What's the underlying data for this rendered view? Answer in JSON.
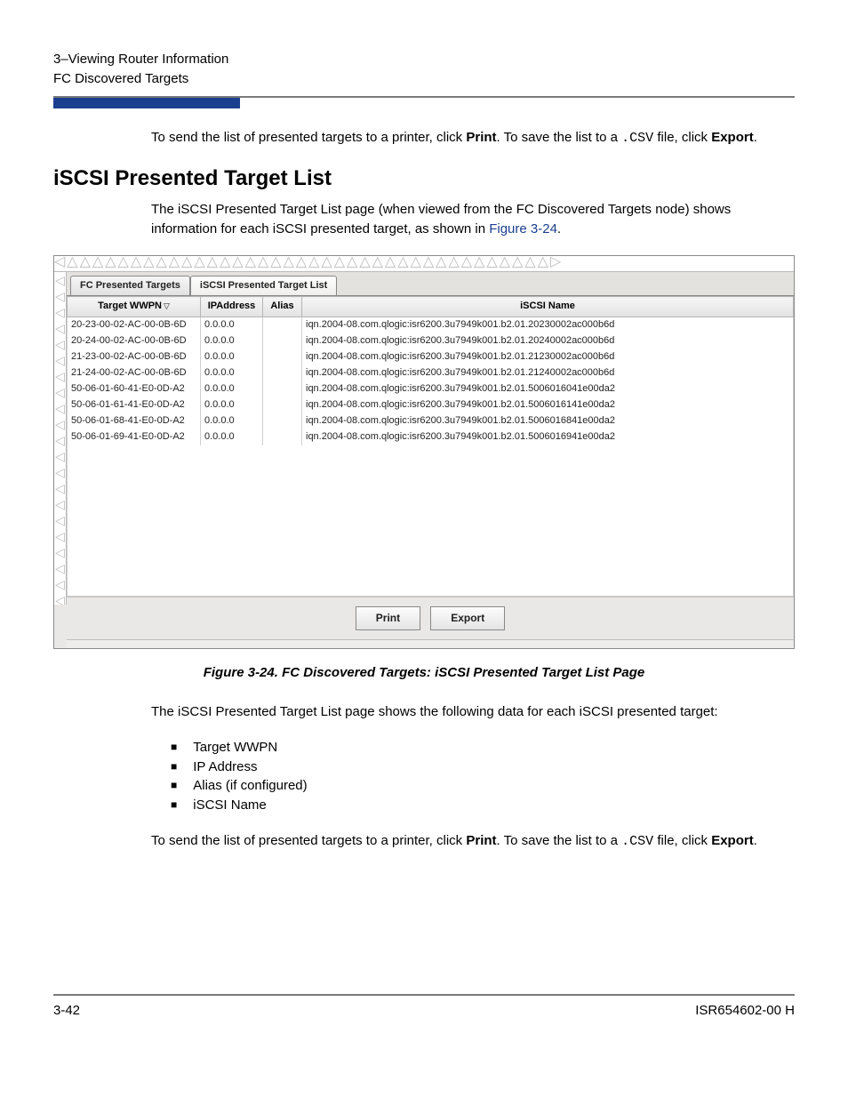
{
  "header": {
    "line1": "3–Viewing Router Information",
    "line2": "FC Discovered Targets"
  },
  "intro_para": {
    "pre": "To send the list of presented targets to a printer, click ",
    "print": "Print",
    "mid": ". To save the list to a ",
    "csv": ".CSV",
    "mid2": "  file, click ",
    "export": "Export",
    "end": "."
  },
  "section_title": "iSCSI Presented Target List",
  "section_para": {
    "t1": "The iSCSI Presented Target List page (when viewed from the FC Discovered Targets node) shows information for each iSCSI presented target, as shown in ",
    "link": "Figure 3-24",
    "t2": "."
  },
  "tabs": {
    "inactive": "FC Presented Targets",
    "active": "iSCSI Presented Target List"
  },
  "columns": {
    "wwpn": "Target WWPN",
    "ip": "IPAddress",
    "alias": "Alias",
    "iscsi": "iSCSI Name"
  },
  "rows": [
    {
      "wwpn": "20-23-00-02-AC-00-0B-6D",
      "ip": "0.0.0.0",
      "alias": "",
      "iscsi": "iqn.2004-08.com.qlogic:isr6200.3u7949k001.b2.01.20230002ac000b6d"
    },
    {
      "wwpn": "20-24-00-02-AC-00-0B-6D",
      "ip": "0.0.0.0",
      "alias": "",
      "iscsi": "iqn.2004-08.com.qlogic:isr6200.3u7949k001.b2.01.20240002ac000b6d"
    },
    {
      "wwpn": "21-23-00-02-AC-00-0B-6D",
      "ip": "0.0.0.0",
      "alias": "",
      "iscsi": "iqn.2004-08.com.qlogic:isr6200.3u7949k001.b2.01.21230002ac000b6d"
    },
    {
      "wwpn": "21-24-00-02-AC-00-0B-6D",
      "ip": "0.0.0.0",
      "alias": "",
      "iscsi": "iqn.2004-08.com.qlogic:isr6200.3u7949k001.b2.01.21240002ac000b6d"
    },
    {
      "wwpn": "50-06-01-60-41-E0-0D-A2",
      "ip": "0.0.0.0",
      "alias": "",
      "iscsi": "iqn.2004-08.com.qlogic:isr6200.3u7949k001.b2.01.5006016041e00da2"
    },
    {
      "wwpn": "50-06-01-61-41-E0-0D-A2",
      "ip": "0.0.0.0",
      "alias": "",
      "iscsi": "iqn.2004-08.com.qlogic:isr6200.3u7949k001.b2.01.5006016141e00da2"
    },
    {
      "wwpn": "50-06-01-68-41-E0-0D-A2",
      "ip": "0.0.0.0",
      "alias": "",
      "iscsi": "iqn.2004-08.com.qlogic:isr6200.3u7949k001.b2.01.5006016841e00da2"
    },
    {
      "wwpn": "50-06-01-69-41-E0-0D-A2",
      "ip": "0.0.0.0",
      "alias": "",
      "iscsi": "iqn.2004-08.com.qlogic:isr6200.3u7949k001.b2.01.5006016941e00da2"
    }
  ],
  "buttons": {
    "print": "Print",
    "export": "Export"
  },
  "figure_caption": "Figure 3-24. FC Discovered Targets: iSCSI Presented Target List Page",
  "after_para": "The iSCSI Presented Target List page shows the following data for each iSCSI presented target:",
  "bullets": [
    "Target WWPN",
    "IP Address",
    "Alias (if configured)",
    "iSCSI Name"
  ],
  "outro_para": {
    "pre": "To send the list of presented targets to a printer, click ",
    "print": "Print",
    "mid": ". To save the list to a ",
    "csv": ".CSV",
    "mid2": " file, click ",
    "export": "Export",
    "end": "."
  },
  "footer": {
    "left": "3-42",
    "right": "ISR654602-00  H"
  },
  "colors": {
    "blue_bar": "#1b3f8f",
    "link": "#1b3f8f"
  }
}
